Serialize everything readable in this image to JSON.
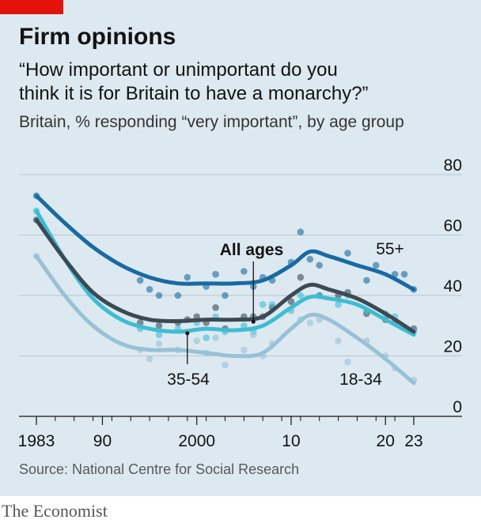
{
  "header": {
    "title": "Firm opinions",
    "subtitle_line1": "“How important or unimportant do you",
    "subtitle_line2": "think it is for Britain to have a monarchy?”",
    "description": "Britain, % responding “very important”, by age group"
  },
  "footer": {
    "source": "Source: National Centre for Social Research",
    "brand": "The Economist"
  },
  "chart_data": {
    "type": "line",
    "xlabel": "",
    "ylabel": "",
    "ylim": [
      0,
      80
    ],
    "xlim": [
      1982,
      2025
    ],
    "y_ticks": [
      "80",
      "60",
      "40",
      "20",
      "0"
    ],
    "y_tick_values": [
      80,
      60,
      40,
      20,
      0
    ],
    "x_ticks": [
      "1983",
      "90",
      "2000",
      "10",
      "20",
      "23"
    ],
    "x_tick_values": [
      1983,
      1990,
      2000,
      2010,
      2020,
      2023
    ],
    "x_minor_ticks": [
      1983,
      1985,
      1987,
      1989,
      1991,
      1993,
      1995,
      1997,
      1999,
      2001,
      2003,
      2005,
      2007,
      2009,
      2011,
      2013,
      2015,
      2017,
      2019,
      2021,
      2023
    ],
    "grid": true,
    "series": [
      {
        "name": "55+",
        "color": "#1a6aa2",
        "points": [
          [
            1983,
            73
          ],
          [
            1994,
            45
          ],
          [
            1995,
            42
          ],
          [
            1996,
            40
          ],
          [
            1998,
            40
          ],
          [
            1999,
            46
          ],
          [
            2001,
            43
          ],
          [
            2002,
            47
          ],
          [
            2003,
            40
          ],
          [
            2005,
            48
          ],
          [
            2006,
            43
          ],
          [
            2007,
            46
          ],
          [
            2008,
            45
          ],
          [
            2010,
            51
          ],
          [
            2011,
            61
          ],
          [
            2012,
            52
          ],
          [
            2013,
            50
          ],
          [
            2016,
            54
          ],
          [
            2018,
            45
          ],
          [
            2019,
            50
          ],
          [
            2021,
            47
          ],
          [
            2022,
            47
          ],
          [
            2023,
            42
          ]
        ],
        "trend": [
          [
            1983,
            73
          ],
          [
            1986,
            64
          ],
          [
            1989,
            56
          ],
          [
            1992,
            50
          ],
          [
            1995,
            46
          ],
          [
            1998,
            44
          ],
          [
            2001,
            44
          ],
          [
            2004,
            44
          ],
          [
            2007,
            45
          ],
          [
            2010,
            50
          ],
          [
            2012,
            54.5
          ],
          [
            2014,
            53
          ],
          [
            2017,
            50
          ],
          [
            2020,
            47
          ],
          [
            2023,
            42
          ]
        ]
      },
      {
        "name": "All ages",
        "color": "#3b4a54",
        "points": [
          [
            1983,
            65
          ],
          [
            1994,
            31
          ],
          [
            1996,
            30
          ],
          [
            1998,
            31
          ],
          [
            1999,
            32
          ],
          [
            2000,
            33
          ],
          [
            2001,
            31
          ],
          [
            2002,
            36
          ],
          [
            2003,
            29
          ],
          [
            2005,
            33
          ],
          [
            2006,
            33
          ],
          [
            2007,
            33
          ],
          [
            2008,
            36
          ],
          [
            2010,
            38
          ],
          [
            2011,
            46
          ],
          [
            2013,
            40
          ],
          [
            2015,
            40
          ],
          [
            2016,
            41
          ],
          [
            2018,
            34
          ],
          [
            2020,
            32
          ],
          [
            2021,
            31
          ],
          [
            2023,
            29
          ]
        ],
        "trend": [
          [
            1983,
            65
          ],
          [
            1986,
            52
          ],
          [
            1989,
            41
          ],
          [
            1992,
            35
          ],
          [
            1995,
            32
          ],
          [
            1998,
            31.5
          ],
          [
            2001,
            32
          ],
          [
            2004,
            32
          ],
          [
            2007,
            33
          ],
          [
            2010,
            40
          ],
          [
            2012,
            43.5
          ],
          [
            2014,
            42
          ],
          [
            2017,
            39
          ],
          [
            2020,
            34
          ],
          [
            2023,
            28
          ]
        ]
      },
      {
        "name": "35-54",
        "color": "#3ebcd2",
        "points": [
          [
            1983,
            68
          ],
          [
            1994,
            29
          ],
          [
            1996,
            27
          ],
          [
            1998,
            29
          ],
          [
            2000,
            31
          ],
          [
            2001,
            26
          ],
          [
            2002,
            33
          ],
          [
            2003,
            28
          ],
          [
            2005,
            30
          ],
          [
            2006,
            28
          ],
          [
            2007,
            37
          ],
          [
            2008,
            37
          ],
          [
            2010,
            35
          ],
          [
            2011,
            40
          ],
          [
            2013,
            40
          ],
          [
            2015,
            37
          ],
          [
            2016,
            40
          ],
          [
            2018,
            35
          ],
          [
            2020,
            34
          ],
          [
            2021,
            33
          ],
          [
            2023,
            28
          ]
        ],
        "trend": [
          [
            1983,
            68
          ],
          [
            1986,
            52
          ],
          [
            1989,
            39
          ],
          [
            1992,
            32
          ],
          [
            1995,
            29
          ],
          [
            1998,
            28
          ],
          [
            2001,
            29
          ],
          [
            2004,
            28.5
          ],
          [
            2007,
            30
          ],
          [
            2010,
            36
          ],
          [
            2012,
            39.5
          ],
          [
            2014,
            39
          ],
          [
            2017,
            37
          ],
          [
            2020,
            32
          ],
          [
            2023,
            27
          ]
        ]
      },
      {
        "name": "18-34",
        "color": "#98c1d6",
        "points": [
          [
            1983,
            53
          ],
          [
            1994,
            22
          ],
          [
            1995,
            19
          ],
          [
            1996,
            24
          ],
          [
            1998,
            22
          ],
          [
            2000,
            25
          ],
          [
            2001,
            21
          ],
          [
            2002,
            26
          ],
          [
            2003,
            17
          ],
          [
            2005,
            22
          ],
          [
            2006,
            27
          ],
          [
            2007,
            20
          ],
          [
            2008,
            24
          ],
          [
            2010,
            35
          ],
          [
            2011,
            32
          ],
          [
            2012,
            31
          ],
          [
            2013,
            32
          ],
          [
            2015,
            25
          ],
          [
            2016,
            18
          ],
          [
            2018,
            25
          ],
          [
            2020,
            20
          ],
          [
            2021,
            16
          ],
          [
            2023,
            12
          ]
        ],
        "trend": [
          [
            1983,
            53
          ],
          [
            1986,
            40
          ],
          [
            1989,
            30
          ],
          [
            1992,
            24
          ],
          [
            1995,
            22
          ],
          [
            1998,
            22
          ],
          [
            2001,
            21
          ],
          [
            2004,
            20
          ],
          [
            2007,
            21
          ],
          [
            2010,
            29
          ],
          [
            2012,
            33.5
          ],
          [
            2014,
            32
          ],
          [
            2017,
            26
          ],
          [
            2020,
            19
          ],
          [
            2023,
            11
          ]
        ]
      }
    ],
    "labels": {
      "s55": "55+",
      "all": "All ages",
      "s3554": "35-54",
      "s1834": "18-34"
    }
  }
}
